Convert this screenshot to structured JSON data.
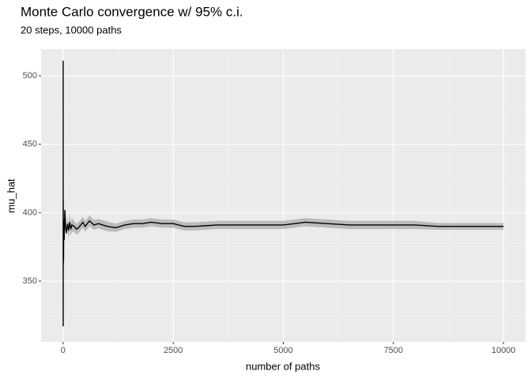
{
  "chart_data": {
    "type": "line",
    "title": "Monte Carlo convergence w/ 95% c.i.",
    "subtitle": "20 steps, 10000 paths",
    "x_label": "number of paths",
    "y_label": "mu_hat",
    "x": [
      1,
      2,
      3,
      5,
      8,
      10,
      15,
      20,
      25,
      30,
      40,
      50,
      60,
      75,
      100,
      125,
      150,
      175,
      200,
      250,
      300,
      350,
      400,
      450,
      500,
      550,
      600,
      700,
      800,
      900,
      1000,
      1200,
      1400,
      1600,
      1800,
      2000,
      2250,
      2500,
      2750,
      3000,
      3500,
      4000,
      4500,
      5000,
      5500,
      6000,
      6500,
      7000,
      7500,
      8000,
      8500,
      9000,
      9500,
      10000
    ],
    "series": [
      {
        "color": "#000000",
        "values": [
          511,
          317,
          409,
          362,
          375,
          365,
          395,
          385,
          380,
          390,
          402,
          395,
          388,
          385,
          392,
          387,
          393,
          388,
          391,
          390,
          388,
          389,
          391,
          393,
          390,
          392,
          394,
          391,
          392,
          391,
          390,
          389,
          391,
          392,
          392,
          393,
          392,
          392,
          390,
          390,
          391,
          391,
          391,
          391,
          393,
          392,
          391,
          391,
          391,
          391,
          390,
          390,
          390,
          390
        ]
      }
    ],
    "ribbon": {
      "color": "#b3b3b3",
      "lower": [
        null,
        null,
        null,
        null,
        null,
        null,
        null,
        null,
        null,
        null,
        null,
        null,
        null,
        null,
        386,
        381,
        387,
        383,
        386,
        386,
        384,
        385,
        387,
        389,
        386,
        388,
        390,
        387.5,
        388.5,
        387.5,
        386.5,
        386,
        388,
        389,
        389,
        390,
        389,
        389,
        387,
        387,
        388,
        388,
        388,
        388,
        390,
        389,
        388,
        388,
        388,
        388,
        387.5,
        387.5,
        387.5,
        387.5
      ],
      "upper": [
        null,
        null,
        null,
        null,
        null,
        null,
        null,
        null,
        null,
        null,
        null,
        null,
        null,
        null,
        398,
        393,
        399,
        393,
        396,
        394,
        392,
        393,
        395,
        397,
        394,
        396,
        398,
        394.5,
        395.5,
        394.5,
        393.5,
        392,
        394,
        395,
        395,
        396,
        395,
        395,
        393,
        393,
        394,
        394,
        394,
        394,
        396,
        395,
        394,
        394,
        394,
        394,
        392.5,
        392.5,
        392.5,
        392.5
      ]
    },
    "xlim": [
      -500,
      10500
    ],
    "ylim": [
      305.6,
      519.6
    ],
    "xticks": [
      0,
      2500,
      5000,
      7500,
      10000
    ],
    "yticks": [
      350,
      400,
      450,
      500
    ],
    "x_minor_ticks": [
      1250,
      3750,
      6250,
      8750
    ],
    "y_minor_ticks": [
      325,
      375,
      425,
      475
    ],
    "grid": true
  }
}
